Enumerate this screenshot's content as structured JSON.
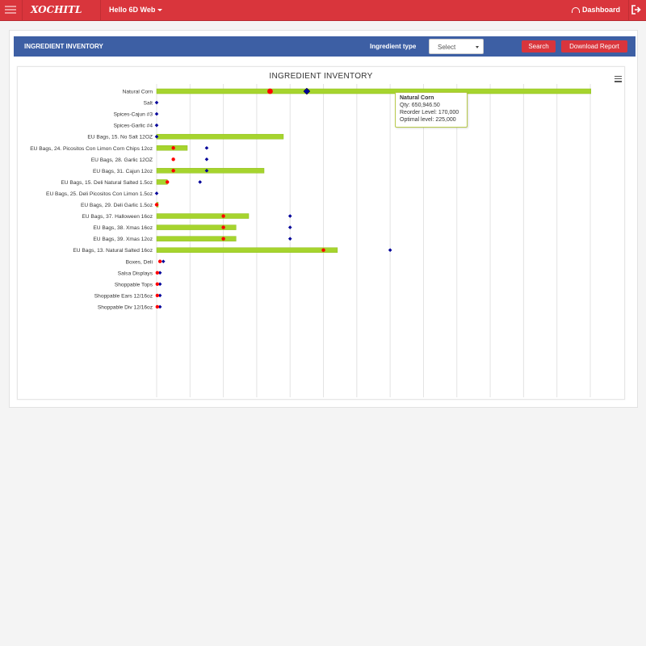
{
  "app": {
    "logo_text": "XOCHITL",
    "greeting": "Hello 6D Web",
    "dashboard_label": "Dashboard"
  },
  "toolbar": {
    "title": "INGREDIENT INVENTORY",
    "type_label": "Ingredient type",
    "select_value": "Select",
    "search_label": "Search",
    "download_label": "Download Report"
  },
  "tooltip": {
    "name": "Natural Corn",
    "qty": "Qty: 650,946.50",
    "reorder": "Reorder Level: 170,000",
    "optimal": "Optimal level: 225,000"
  },
  "colors": {
    "topbar": "#d9353c",
    "header": "#3d5fa4",
    "bar": "#a6d42e",
    "reorder": "#ff0000",
    "optimal": "#000099"
  },
  "chart_data": {
    "type": "bar",
    "orientation": "horizontal",
    "title": "INGREDIENT INVENTORY",
    "xlim": [
      0,
      650000
    ],
    "grid": true,
    "categories": [
      "Natural Corn",
      "Salt",
      "Spices-Cajun #3",
      "Spices-Garlic #4",
      "EU Bags, 15. No Salt 12OZ",
      "EU Bags, 24. Picositos Con Limon Corn Chips 12oz",
      "EU Bags, 28. Garlic 12OZ",
      "EU Bags, 31. Cajun 12oz",
      "EU Bags, 15. Deli Natural Salted 1.5oz",
      "EU Bags, 25. Deli Picositos Con Limon 1.5oz",
      "EU Bags, 29. Deli Garlic 1.5oz",
      "EU Bags, 37. Halloween 16oz",
      "EU Bags, 38. Xmas 16oz",
      "EU Bags, 39. Xmas 12oz",
      "EU Bags, 13. Natural Salted 16oz",
      "Boxes, Deli",
      "Salsa Displays",
      "Shoppable Tops",
      "Shoppable Ears 12/16oz",
      "Shoppable Div 12/16oz"
    ],
    "series": [
      {
        "name": "Qty",
        "values": [
          650946.5,
          0,
          0,
          0,
          190000,
          46000,
          0,
          161000,
          16000,
          0,
          2000,
          138000,
          119000,
          119000,
          271000,
          0,
          0,
          0,
          0,
          0
        ]
      },
      {
        "name": "Reorder Level",
        "values": [
          170000,
          0,
          0,
          0,
          0,
          25000,
          25000,
          25000,
          16000,
          0,
          0,
          100000,
          100000,
          100000,
          250000,
          5000,
          1000,
          1000,
          1000,
          1000
        ]
      },
      {
        "name": "Optimal level",
        "values": [
          225000,
          0,
          0,
          0,
          0,
          75000,
          75000,
          75000,
          65000,
          0,
          0,
          200000,
          200000,
          200000,
          350000,
          10000,
          5000,
          5000,
          5000,
          5000
        ]
      }
    ]
  }
}
